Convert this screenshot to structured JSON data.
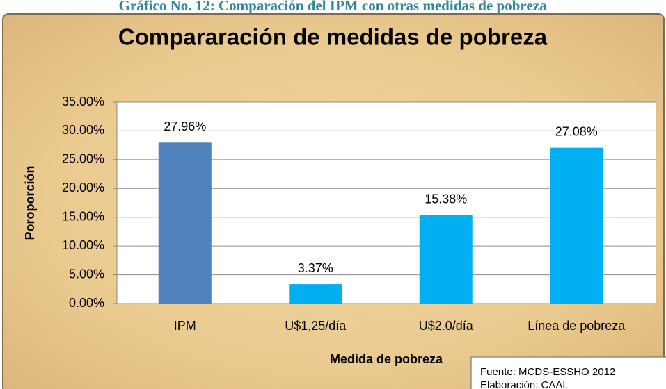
{
  "caption": "Gráfico No. 12: Comparación del IPM con otras medidas de pobreza",
  "chart_data": {
    "type": "bar",
    "title": "Compararación de medidas de pobreza",
    "x_label": "Medida de pobreza",
    "y_label": "Poroporción",
    "categories": [
      "IPM",
      "U$1,25/día",
      "U$2.0/día",
      "Línea de pobreza"
    ],
    "values": [
      27.96,
      3.37,
      15.38,
      27.08
    ],
    "value_labels": [
      "27.96%",
      "3.37%",
      "15.38%",
      "27.08%"
    ],
    "colors": [
      "#4f81bd",
      "#00b0f0",
      "#00b0f0",
      "#00b0f0"
    ],
    "ylim": [
      0,
      35
    ],
    "yticks": [
      {
        "value": 0,
        "label": "0.00%"
      },
      {
        "value": 5,
        "label": "5.00%"
      },
      {
        "value": 10,
        "label": "10.00%"
      },
      {
        "value": 15,
        "label": "15.00%"
      },
      {
        "value": 20,
        "label": "20.00%"
      },
      {
        "value": 25,
        "label": "25.00%"
      },
      {
        "value": 30,
        "label": "30.00%"
      },
      {
        "value": 35,
        "label": "35.00%"
      }
    ],
    "grid": true
  },
  "source": {
    "line1": "Fuente: MCDS-ESSHO 2012",
    "line2": "Elaboración: CAAL"
  }
}
